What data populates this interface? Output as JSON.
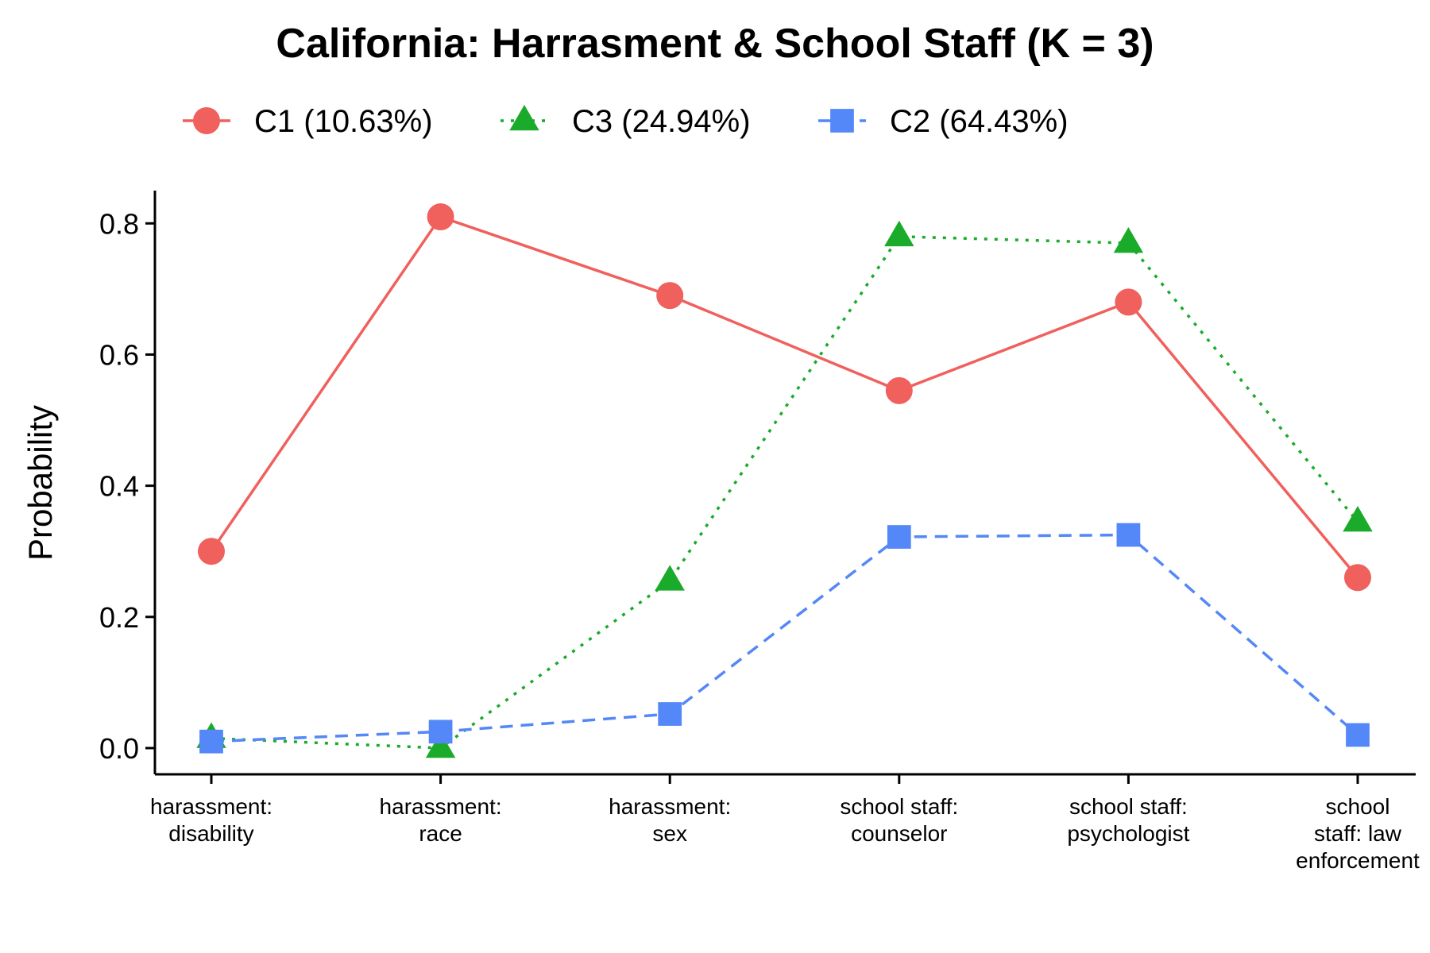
{
  "chart_data": {
    "type": "line",
    "title": "California: Harrasment & School Staff (K = 3)",
    "xlabel": "",
    "ylabel": "Probability",
    "ylim": [
      -0.04,
      0.85
    ],
    "yticks": [
      "0.0",
      "0.2",
      "0.4",
      "0.6",
      "0.8"
    ],
    "ytick_values": [
      0.0,
      0.2,
      0.4,
      0.6,
      0.8
    ],
    "grid": false,
    "legend_position": "top",
    "categories": [
      [
        "harassment:",
        "disability"
      ],
      [
        "harassment:",
        "race"
      ],
      [
        "harassment:",
        "sex"
      ],
      [
        "school staff:",
        "counselor"
      ],
      [
        "school staff:",
        "psychologist"
      ],
      [
        "school",
        "staff: law",
        "enforcement"
      ]
    ],
    "series": [
      {
        "name": "C1 (10.63%)",
        "color": "#F0605D",
        "marker": "circle",
        "dash": "solid",
        "values": [
          0.3,
          0.81,
          0.69,
          0.545,
          0.68,
          0.26
        ]
      },
      {
        "name": "C3 (24.94%)",
        "color": "#1AAB2A",
        "marker": "triangle",
        "dash": "dotted",
        "values": [
          0.015,
          0.0,
          0.255,
          0.78,
          0.77,
          0.345
        ]
      },
      {
        "name": "C2 (64.43%)",
        "color": "#5487F7",
        "marker": "square",
        "dash": "dashed",
        "values": [
          0.01,
          0.025,
          0.052,
          0.322,
          0.325,
          0.02
        ]
      }
    ]
  }
}
